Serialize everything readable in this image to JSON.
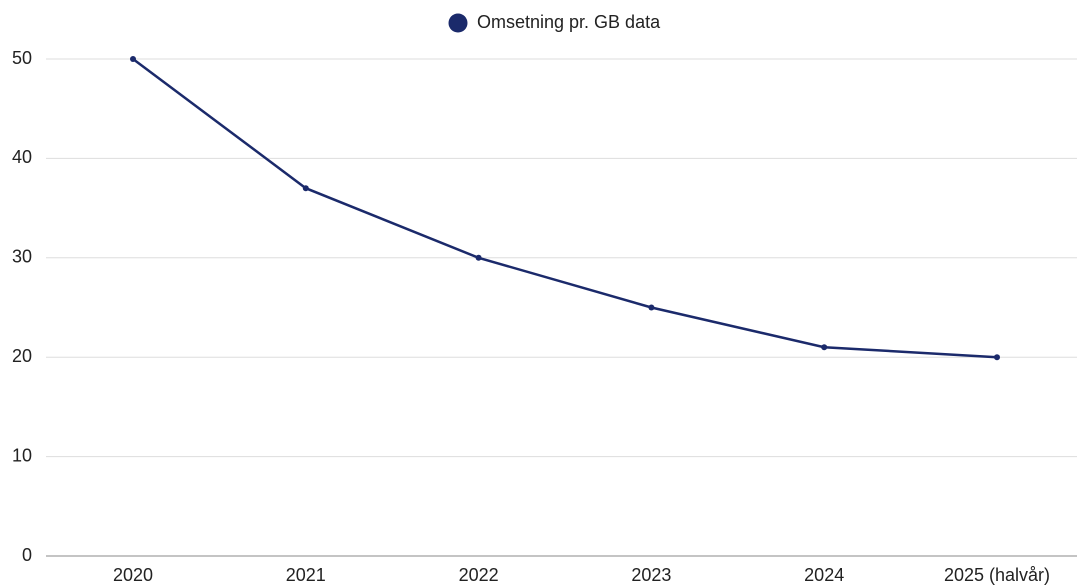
{
  "chart_data": {
    "type": "line",
    "categories": [
      "2020",
      "2021",
      "2022",
      "2023",
      "2024",
      "2025 (halvår)"
    ],
    "series": [
      {
        "name": "Omsetning pr. GB data",
        "color": "#1b2a6b",
        "values": [
          50,
          37,
          30,
          25,
          21,
          20
        ]
      }
    ],
    "ylim": [
      0,
      50
    ],
    "yticks": [
      0,
      10,
      20,
      30,
      40,
      50
    ],
    "grid": true,
    "legend": "top"
  }
}
